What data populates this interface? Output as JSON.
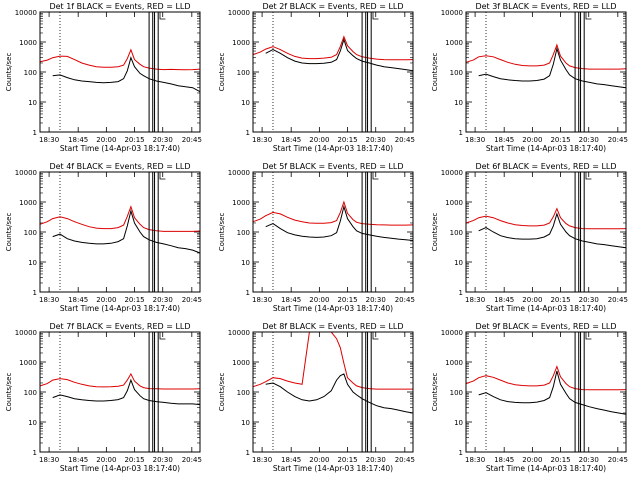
{
  "figure": {
    "xlabel": "Start Time (14-Apr-03 18:17:40)",
    "ylabel": "Counts/sec",
    "x_ticks": [
      "18:30",
      "18:45",
      "20:00",
      "20:15",
      "20:30",
      "20:45"
    ],
    "y_ticks": [
      "1",
      "10",
      "100",
      "1000",
      "10000"
    ],
    "colors": {
      "events": "#000000",
      "lld": "#dd0000",
      "background": "#ffffff",
      "axes": "#000000"
    }
  },
  "chart_data": [
    {
      "type": "line",
      "title": "Det 1f BLACK = Events, RED = LLD",
      "x": [
        0,
        8,
        14,
        22,
        30,
        38,
        46,
        54,
        62,
        70,
        78,
        86,
        92,
        96,
        100,
        104,
        110,
        114,
        120,
        128,
        136,
        144,
        152,
        160,
        168,
        176
      ],
      "ylim": [
        1,
        10000
      ],
      "xlabel": "Start Time (14-Apr-03 18:17:40)",
      "ylabel": "Counts/sec",
      "series": [
        {
          "name": "Events",
          "color": "#000000",
          "values": [
            null,
            null,
            75,
            80,
            65,
            55,
            50,
            48,
            45,
            44,
            45,
            48,
            60,
            110,
            300,
            150,
            90,
            75,
            60,
            50,
            45,
            40,
            35,
            32,
            30,
            22
          ]
        },
        {
          "name": "LLD",
          "color": "#dd0000",
          "values": [
            220,
            250,
            300,
            340,
            330,
            260,
            200,
            170,
            150,
            145,
            145,
            150,
            170,
            280,
            550,
            260,
            180,
            150,
            135,
            125,
            120,
            122,
            120,
            118,
            120,
            125
          ]
        }
      ]
    },
    {
      "type": "line",
      "title": "Det 2f BLACK = Events, RED = LLD",
      "x": [
        0,
        8,
        14,
        22,
        30,
        38,
        46,
        54,
        62,
        70,
        78,
        86,
        92,
        96,
        100,
        104,
        110,
        114,
        120,
        128,
        136,
        144,
        152,
        160,
        168,
        176
      ],
      "ylim": [
        1,
        10000
      ],
      "xlabel": "Start Time (14-Apr-03 18:17:40)",
      "ylabel": "Counts/sec",
      "series": [
        {
          "name": "Events",
          "color": "#000000",
          "values": [
            null,
            null,
            420,
            560,
            420,
            300,
            230,
            200,
            190,
            190,
            195,
            210,
            260,
            500,
            1200,
            520,
            350,
            280,
            230,
            200,
            170,
            150,
            140,
            130,
            120,
            110
          ]
        },
        {
          "name": "LLD",
          "color": "#dd0000",
          "values": [
            380,
            460,
            580,
            700,
            560,
            420,
            330,
            290,
            280,
            280,
            290,
            310,
            380,
            700,
            1500,
            750,
            480,
            380,
            320,
            290,
            270,
            260,
            255,
            255,
            255,
            260
          ]
        }
      ]
    },
    {
      "type": "line",
      "title": "Det 3f BLACK = Events, RED = LLD",
      "x": [
        0,
        8,
        14,
        22,
        30,
        38,
        46,
        54,
        62,
        70,
        78,
        86,
        92,
        96,
        100,
        104,
        110,
        114,
        120,
        128,
        136,
        144,
        152,
        160,
        168,
        176
      ],
      "ylim": [
        1,
        10000
      ],
      "xlabel": "Start Time (14-Apr-03 18:17:40)",
      "ylabel": "Counts/sec",
      "series": [
        {
          "name": "Events",
          "color": "#000000",
          "values": [
            null,
            null,
            75,
            85,
            70,
            60,
            55,
            52,
            50,
            50,
            52,
            58,
            75,
            180,
            600,
            250,
            120,
            80,
            60,
            50,
            45,
            40,
            38,
            35,
            32,
            30
          ]
        },
        {
          "name": "LLD",
          "color": "#dd0000",
          "values": [
            210,
            250,
            320,
            350,
            320,
            260,
            210,
            180,
            165,
            160,
            160,
            170,
            200,
            380,
            800,
            340,
            200,
            160,
            140,
            130,
            125,
            125,
            125,
            125,
            125,
            128
          ]
        }
      ]
    },
    {
      "type": "line",
      "title": "Det 4f BLACK = Events, RED = LLD",
      "x": [
        0,
        8,
        14,
        22,
        30,
        38,
        46,
        54,
        62,
        70,
        78,
        86,
        92,
        96,
        100,
        104,
        110,
        114,
        120,
        128,
        136,
        144,
        152,
        160,
        168,
        176
      ],
      "ylim": [
        1,
        10000
      ],
      "xlabel": "Start Time (14-Apr-03 18:17:40)",
      "ylabel": "Counts/sec",
      "series": [
        {
          "name": "Events",
          "color": "#000000",
          "values": [
            null,
            null,
            70,
            85,
            60,
            50,
            45,
            42,
            40,
            40,
            42,
            48,
            60,
            160,
            500,
            200,
            100,
            70,
            55,
            45,
            40,
            35,
            30,
            28,
            25,
            20
          ]
        },
        {
          "name": "LLD",
          "color": "#dd0000",
          "values": [
            180,
            220,
            280,
            320,
            280,
            220,
            180,
            150,
            135,
            130,
            130,
            140,
            170,
            330,
            700,
            300,
            180,
            140,
            120,
            110,
            105,
            105,
            105,
            105,
            105,
            108
          ]
        }
      ]
    },
    {
      "type": "line",
      "title": "Det 5f BLACK = Events, RED = LLD",
      "x": [
        0,
        8,
        14,
        22,
        30,
        38,
        46,
        54,
        62,
        70,
        78,
        86,
        92,
        96,
        100,
        104,
        110,
        114,
        120,
        128,
        136,
        144,
        152,
        160,
        168,
        176
      ],
      "ylim": [
        1,
        10000
      ],
      "xlabel": "Start Time (14-Apr-03 18:17:40)",
      "ylabel": "Counts/sec",
      "series": [
        {
          "name": "Events",
          "color": "#000000",
          "values": [
            null,
            null,
            150,
            190,
            130,
            95,
            80,
            72,
            68,
            66,
            68,
            75,
            95,
            230,
            700,
            280,
            150,
            110,
            90,
            80,
            72,
            66,
            62,
            58,
            55,
            52
          ]
        },
        {
          "name": "LLD",
          "color": "#dd0000",
          "values": [
            220,
            270,
            350,
            450,
            400,
            310,
            250,
            220,
            200,
            195,
            195,
            205,
            240,
            450,
            1000,
            420,
            260,
            210,
            190,
            180,
            175,
            172,
            170,
            170,
            170,
            172
          ]
        }
      ]
    },
    {
      "type": "line",
      "title": "Det 6f BLACK = Events, RED = LLD",
      "x": [
        0,
        8,
        14,
        22,
        30,
        38,
        46,
        54,
        62,
        70,
        78,
        86,
        92,
        96,
        100,
        104,
        110,
        114,
        120,
        128,
        136,
        144,
        152,
        160,
        168,
        176
      ],
      "ylim": [
        1,
        10000
      ],
      "xlabel": "Start Time (14-Apr-03 18:17:40)",
      "ylabel": "Counts/sec",
      "series": [
        {
          "name": "Events",
          "color": "#000000",
          "values": [
            null,
            null,
            110,
            140,
            100,
            75,
            65,
            60,
            58,
            58,
            60,
            68,
            85,
            160,
            400,
            180,
            100,
            75,
            60,
            50,
            45,
            40,
            38,
            35,
            32,
            30
          ]
        },
        {
          "name": "LLD",
          "color": "#dd0000",
          "values": [
            200,
            240,
            300,
            340,
            300,
            240,
            200,
            175,
            165,
            160,
            160,
            170,
            200,
            320,
            600,
            300,
            190,
            160,
            140,
            130,
            128,
            128,
            128,
            128,
            128,
            130
          ]
        }
      ]
    },
    {
      "type": "line",
      "title": "Det 7f BLACK = Events, RED = LLD",
      "x": [
        0,
        8,
        14,
        22,
        30,
        38,
        46,
        54,
        62,
        70,
        78,
        86,
        92,
        96,
        100,
        104,
        110,
        114,
        120,
        128,
        136,
        144,
        152,
        160,
        168,
        176
      ],
      "ylim": [
        1,
        10000
      ],
      "xlabel": "Start Time (14-Apr-03 18:17:40)",
      "ylabel": "Counts/sec",
      "series": [
        {
          "name": "Events",
          "color": "#000000",
          "values": [
            null,
            null,
            65,
            80,
            70,
            60,
            55,
            52,
            50,
            50,
            52,
            56,
            65,
            110,
            250,
            120,
            75,
            60,
            52,
            48,
            45,
            42,
            40,
            40,
            40,
            38
          ]
        },
        {
          "name": "LLD",
          "color": "#dd0000",
          "values": [
            160,
            190,
            250,
            280,
            260,
            210,
            180,
            160,
            150,
            148,
            150,
            155,
            170,
            250,
            400,
            230,
            160,
            140,
            130,
            128,
            126,
            126,
            126,
            126,
            126,
            128
          ]
        }
      ]
    },
    {
      "type": "line",
      "title": "Det 8f BLACK = Events, RED = LLD",
      "x": [
        0,
        8,
        14,
        22,
        30,
        38,
        46,
        54,
        62,
        70,
        78,
        86,
        92,
        96,
        100,
        104,
        110,
        114,
        120,
        128,
        136,
        144,
        152,
        160,
        168,
        176
      ],
      "ylim": [
        1,
        10000
      ],
      "xlabel": "Start Time (14-Apr-03 18:17:40)",
      "ylabel": "Counts/sec",
      "series": [
        {
          "name": "Events",
          "color": "#000000",
          "values": [
            null,
            null,
            180,
            200,
            150,
            100,
            70,
            55,
            50,
            55,
            70,
            110,
            250,
            350,
            400,
            180,
            100,
            80,
            60,
            45,
            35,
            30,
            28,
            25,
            22,
            20
          ]
        },
        {
          "name": "LLD",
          "color": "#dd0000",
          "values": [
            150,
            180,
            220,
            300,
            280,
            230,
            200,
            180,
            10000,
            10000,
            10000,
            10000,
            6000,
            3000,
            900,
            300,
            200,
            160,
            140,
            130,
            125,
            125,
            125,
            125,
            125,
            125
          ]
        }
      ]
    },
    {
      "type": "line",
      "title": "Det 9f BLACK = Events, RED = LLD",
      "x": [
        0,
        8,
        14,
        22,
        30,
        38,
        46,
        54,
        62,
        70,
        78,
        86,
        92,
        96,
        100,
        104,
        110,
        114,
        120,
        128,
        136,
        144,
        152,
        160,
        168,
        176
      ],
      "ylim": [
        1,
        10000
      ],
      "xlabel": "Start Time (14-Apr-03 18:17:40)",
      "ylabel": "Counts/sec",
      "series": [
        {
          "name": "Events",
          "color": "#000000",
          "values": [
            null,
            null,
            80,
            95,
            70,
            55,
            48,
            45,
            44,
            44,
            46,
            52,
            65,
            150,
            500,
            180,
            90,
            60,
            45,
            38,
            32,
            28,
            25,
            22,
            20,
            18
          ]
        },
        {
          "name": "LLD",
          "color": "#dd0000",
          "values": [
            190,
            230,
            300,
            350,
            310,
            250,
            200,
            175,
            165,
            160,
            160,
            170,
            200,
            350,
            700,
            320,
            190,
            150,
            130,
            120,
            118,
            118,
            118,
            118,
            118,
            120
          ]
        }
      ]
    }
  ]
}
